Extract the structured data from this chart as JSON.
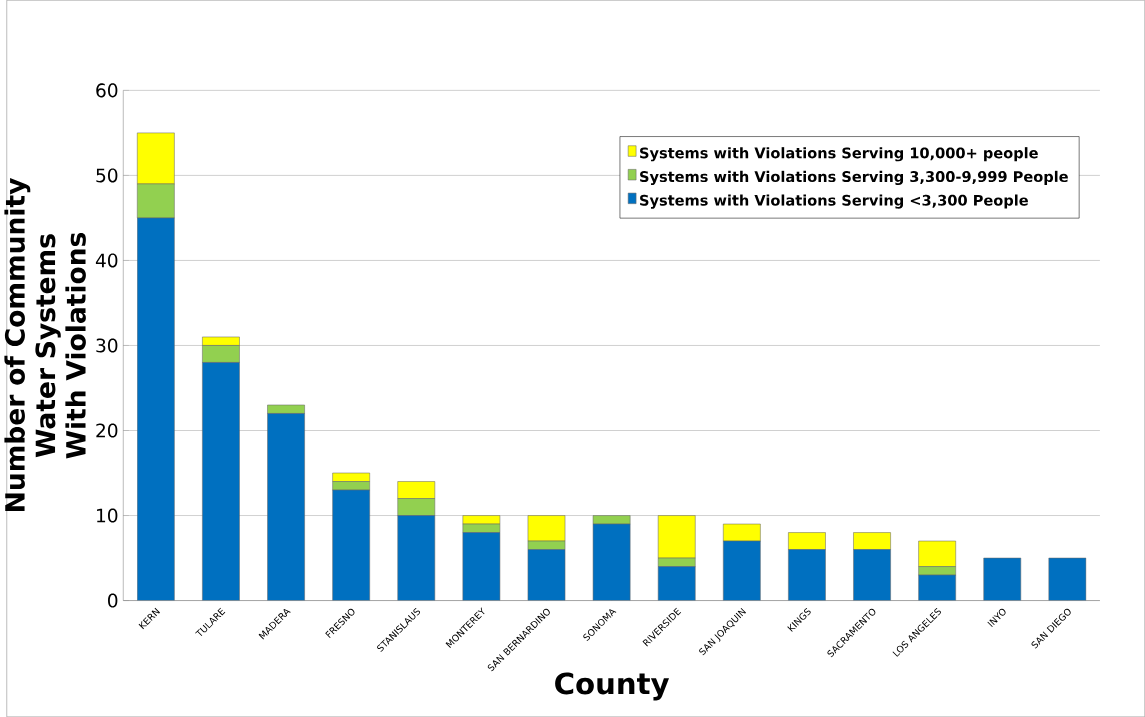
{
  "chart_data": {
    "type": "bar",
    "stacked": true,
    "xlabel": "County",
    "ylabel": "Number of Community Water Systems With Violations",
    "categories": [
      "KERN",
      "TULARE",
      "MADERA",
      "FRESNO",
      "STANISLAUS",
      "MONTEREY",
      "SAN BERNARDINO",
      "SONOMA",
      "RIVERSIDE",
      "SAN JOAQUIN",
      "KINGS",
      "SACRAMENTO",
      "LOS ANGELES",
      "INYO",
      "SAN DIEGO"
    ],
    "series": [
      {
        "name": "Systems with Violations Serving <3,300 People",
        "color": "#0070c0",
        "values": [
          45,
          28,
          22,
          13,
          10,
          8,
          6,
          9,
          4,
          7,
          6,
          6,
          3,
          5,
          5
        ]
      },
      {
        "name": "Systems with Violations Serving 3,300-9,999 People",
        "color": "#92d050",
        "values": [
          4,
          2,
          1,
          1,
          2,
          1,
          1,
          1,
          1,
          0,
          0,
          0,
          1,
          0,
          0
        ]
      },
      {
        "name": "Systems with Violations Serving 10,000+ people",
        "color": "#ffff00",
        "values": [
          6,
          1,
          0,
          1,
          2,
          1,
          3,
          0,
          5,
          2,
          2,
          2,
          3,
          0,
          0
        ]
      }
    ],
    "ylim": [
      0,
      60
    ],
    "yticks": [
      0,
      10,
      20,
      30,
      40,
      50,
      60
    ],
    "grid": "y",
    "legend": "top right"
  }
}
